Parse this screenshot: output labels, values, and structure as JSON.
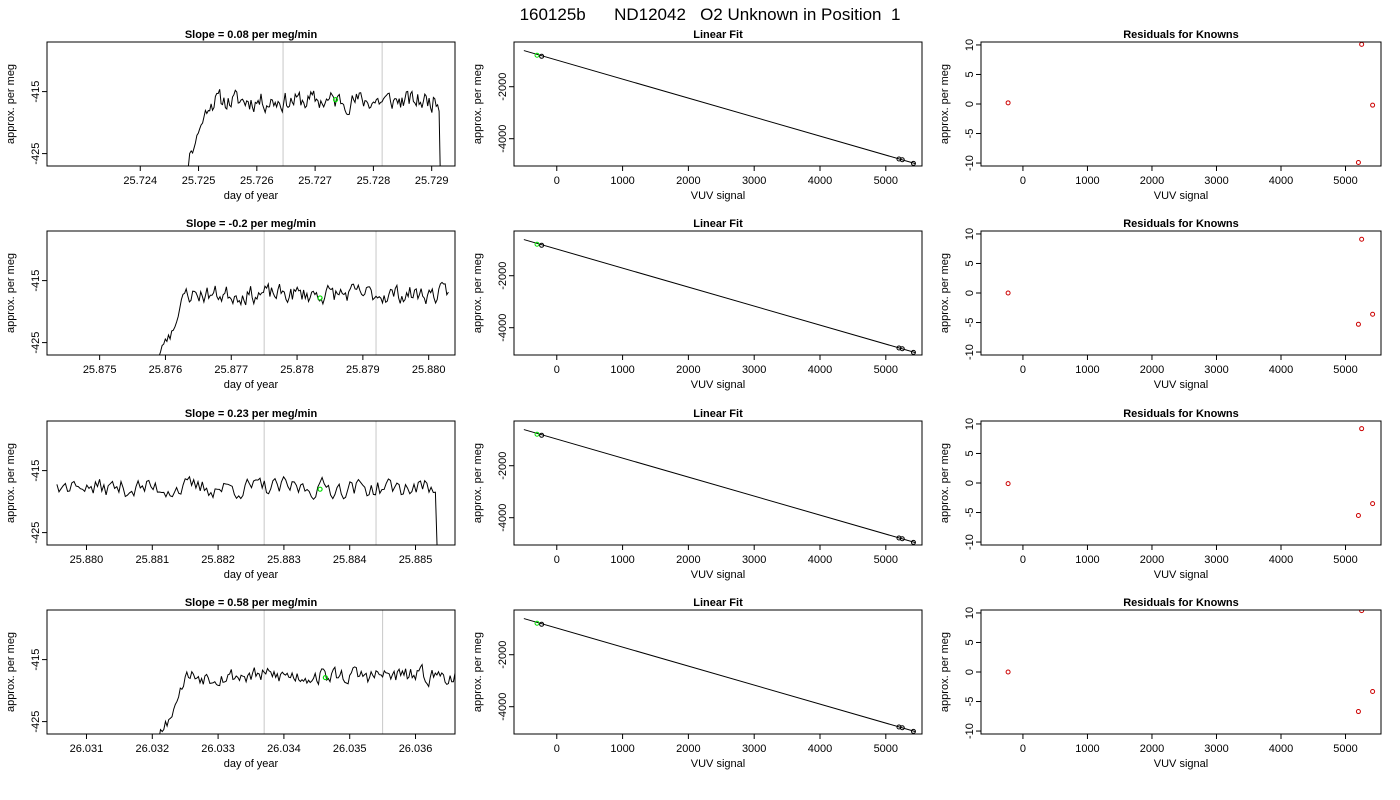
{
  "figure": {
    "title": "160125b      ND12042   O2 Unknown in Position  1"
  },
  "colors": {
    "trace": "#000000",
    "marker_green": "#00dd00",
    "marker_red": "#cc0000",
    "vline": "#c8c8c8"
  },
  "chart_data": [
    {
      "row": 1,
      "col": 1,
      "type": "line",
      "title": "Slope =  0.08  per meg/min",
      "xlabel": "day of year",
      "ylabel": "approx. per meg",
      "xlim": [
        25.7224,
        25.7294
      ],
      "ylim": [
        -427,
        -407
      ],
      "xticks": [
        25.724,
        25.725,
        25.726,
        25.727,
        25.728,
        25.729
      ],
      "xtick_labels": [
        "25.724",
        "25.725",
        "25.726",
        "25.727",
        "25.728",
        "25.729"
      ],
      "yticks": [
        -415,
        -425
      ],
      "ytick_labels": [
        "-415",
        "-425"
      ],
      "trace": {
        "t_start": 25.7248,
        "t_end": 25.7292,
        "start_level": -427,
        "start_ramp_to": -421,
        "mean": -416.5,
        "amp": 2.6,
        "end_drop": true,
        "seed": 11
      },
      "vlines": [
        25.72645,
        25.72815
      ],
      "marker": {
        "x": 25.72735,
        "y": -416.3
      }
    },
    {
      "row": 1,
      "col": 2,
      "type": "scatter",
      "title": "Linear Fit",
      "xlabel": "VUV signal",
      "ylabel": "approx. per meg",
      "xlim": [
        -650,
        5550
      ],
      "ylim": [
        -5050,
        -280
      ],
      "xticks": [
        0,
        1000,
        2000,
        3000,
        4000,
        5000
      ],
      "xtick_labels": [
        "0",
        "1000",
        "2000",
        "3000",
        "4000",
        "5000"
      ],
      "yticks": [
        -2000,
        -4000
      ],
      "ytick_labels": [
        "-2000",
        "-4000"
      ],
      "fit_line": {
        "x": [
          -500,
          5450
        ],
        "y": [
          -610,
          -4960
        ]
      },
      "points": [
        {
          "x": -300,
          "y": -790,
          "color": "green"
        },
        {
          "x": -230,
          "y": -830,
          "color": "black"
        },
        {
          "x": 5200,
          "y": -4780,
          "color": "black"
        },
        {
          "x": 5250,
          "y": -4810,
          "color": "black"
        },
        {
          "x": 5420,
          "y": -4950,
          "color": "black"
        }
      ]
    },
    {
      "row": 1,
      "col": 3,
      "type": "scatter",
      "title": "Residuals for Knowns",
      "xlabel": "VUV signal",
      "ylabel": "approx. per meg",
      "xlim": [
        -650,
        5550
      ],
      "ylim": [
        -10.5,
        10.5
      ],
      "xticks": [
        0,
        1000,
        2000,
        3000,
        4000,
        5000
      ],
      "xtick_labels": [
        "0",
        "1000",
        "2000",
        "3000",
        "4000",
        "5000"
      ],
      "yticks": [
        10,
        5,
        0,
        -5,
        -10
      ],
      "ytick_labels": [
        "10",
        "5",
        "0",
        "-5",
        "-10"
      ],
      "points": [
        {
          "x": -230,
          "y": 0.2,
          "color": "red"
        },
        {
          "x": 5250,
          "y": 10.1,
          "color": "red"
        },
        {
          "x": 5420,
          "y": -0.2,
          "color": "red"
        },
        {
          "x": 5200,
          "y": -9.9,
          "color": "red"
        }
      ]
    },
    {
      "row": 2,
      "col": 1,
      "type": "line",
      "title": "Slope =  -0.2  per meg/min",
      "xlabel": "day of year",
      "ylabel": "approx. per meg",
      "xlim": [
        25.8742,
        25.8804
      ],
      "ylim": [
        -427,
        -407
      ],
      "xticks": [
        25.875,
        25.876,
        25.877,
        25.878,
        25.879,
        25.88
      ],
      "xtick_labels": [
        "25.875",
        "25.876",
        "25.877",
        "25.878",
        "25.879",
        "25.880"
      ],
      "yticks": [
        -415,
        -425
      ],
      "ytick_labels": [
        "-415",
        "-425"
      ],
      "trace": {
        "t_start": 25.8759,
        "t_end": 25.8803,
        "start_level": -427,
        "start_ramp_to": -423,
        "mean": -417.2,
        "amp": 2.4,
        "end_drop": false,
        "seed": 23
      },
      "vlines": [
        25.8775,
        25.8792
      ],
      "marker": {
        "x": 25.87835,
        "y": -417.8
      }
    },
    {
      "row": 2,
      "col": 2,
      "type": "scatter",
      "title": "Linear Fit",
      "xlabel": "VUV signal",
      "ylabel": "approx. per meg",
      "xlim": [
        -650,
        5550
      ],
      "ylim": [
        -5050,
        -280
      ],
      "xticks": [
        0,
        1000,
        2000,
        3000,
        4000,
        5000
      ],
      "xtick_labels": [
        "0",
        "1000",
        "2000",
        "3000",
        "4000",
        "5000"
      ],
      "yticks": [
        -2000,
        -4000
      ],
      "ytick_labels": [
        "-2000",
        "-4000"
      ],
      "fit_line": {
        "x": [
          -500,
          5450
        ],
        "y": [
          -610,
          -4960
        ]
      },
      "points": [
        {
          "x": -300,
          "y": -790,
          "color": "green"
        },
        {
          "x": -230,
          "y": -830,
          "color": "black"
        },
        {
          "x": 5200,
          "y": -4780,
          "color": "black"
        },
        {
          "x": 5250,
          "y": -4810,
          "color": "black"
        },
        {
          "x": 5420,
          "y": -4950,
          "color": "black"
        }
      ]
    },
    {
      "row": 2,
      "col": 3,
      "type": "scatter",
      "title": "Residuals for Knowns",
      "xlabel": "VUV signal",
      "ylabel": "approx. per meg",
      "xlim": [
        -650,
        5550
      ],
      "ylim": [
        -10.5,
        10.5
      ],
      "xticks": [
        0,
        1000,
        2000,
        3000,
        4000,
        5000
      ],
      "xtick_labels": [
        "0",
        "1000",
        "2000",
        "3000",
        "4000",
        "5000"
      ],
      "yticks": [
        10,
        5,
        0,
        -5,
        -10
      ],
      "ytick_labels": [
        "10",
        "5",
        "0",
        "-5",
        "-10"
      ],
      "points": [
        {
          "x": -230,
          "y": 0.0,
          "color": "red"
        },
        {
          "x": 5250,
          "y": 9.1,
          "color": "red"
        },
        {
          "x": 5420,
          "y": -3.6,
          "color": "red"
        },
        {
          "x": 5200,
          "y": -5.3,
          "color": "red"
        }
      ]
    },
    {
      "row": 3,
      "col": 1,
      "type": "line",
      "title": "Slope =  0.23  per meg/min",
      "xlabel": "day of year",
      "ylabel": "approx. per meg",
      "xlim": [
        25.8794,
        25.8856
      ],
      "ylim": [
        -427,
        -407
      ],
      "xticks": [
        25.88,
        25.881,
        25.882,
        25.883,
        25.884,
        25.885
      ],
      "xtick_labels": [
        "25.880",
        "25.881",
        "25.882",
        "25.883",
        "25.884",
        "25.885"
      ],
      "yticks": [
        -415,
        -425
      ],
      "ytick_labels": [
        "-415",
        "-425"
      ],
      "trace": {
        "t_start": 25.87955,
        "t_end": 25.8854,
        "start_level": -417.5,
        "start_ramp_to": -417.5,
        "mean": -417.8,
        "amp": 2.5,
        "end_drop": true,
        "seed": 37
      },
      "vlines": [
        25.8827,
        25.8844
      ],
      "marker": {
        "x": 25.88355,
        "y": -418.0
      }
    },
    {
      "row": 3,
      "col": 2,
      "type": "scatter",
      "title": "Linear Fit",
      "xlabel": "VUV signal",
      "ylabel": "approx. per meg",
      "xlim": [
        -650,
        5550
      ],
      "ylim": [
        -5050,
        -280
      ],
      "xticks": [
        0,
        1000,
        2000,
        3000,
        4000,
        5000
      ],
      "xtick_labels": [
        "0",
        "1000",
        "2000",
        "3000",
        "4000",
        "5000"
      ],
      "yticks": [
        -2000,
        -4000
      ],
      "ytick_labels": [
        "-2000",
        "-4000"
      ],
      "fit_line": {
        "x": [
          -500,
          5450
        ],
        "y": [
          -610,
          -4960
        ]
      },
      "points": [
        {
          "x": -300,
          "y": -790,
          "color": "green"
        },
        {
          "x": -230,
          "y": -830,
          "color": "black"
        },
        {
          "x": 5200,
          "y": -4780,
          "color": "black"
        },
        {
          "x": 5250,
          "y": -4810,
          "color": "black"
        },
        {
          "x": 5420,
          "y": -4950,
          "color": "black"
        }
      ]
    },
    {
      "row": 3,
      "col": 3,
      "type": "scatter",
      "title": "Residuals for Knowns",
      "xlabel": "VUV signal",
      "ylabel": "approx. per meg",
      "xlim": [
        -650,
        5550
      ],
      "ylim": [
        -10.5,
        10.5
      ],
      "xticks": [
        0,
        1000,
        2000,
        3000,
        4000,
        5000
      ],
      "xtick_labels": [
        "0",
        "1000",
        "2000",
        "3000",
        "4000",
        "5000"
      ],
      "yticks": [
        10,
        5,
        0,
        -5,
        -10
      ],
      "ytick_labels": [
        "10",
        "5",
        "0",
        "-5",
        "-10"
      ],
      "points": [
        {
          "x": -230,
          "y": -0.1,
          "color": "red"
        },
        {
          "x": 5250,
          "y": 9.2,
          "color": "red"
        },
        {
          "x": 5420,
          "y": -3.5,
          "color": "red"
        },
        {
          "x": 5200,
          "y": -5.5,
          "color": "red"
        }
      ]
    },
    {
      "row": 4,
      "col": 1,
      "type": "line",
      "title": "Slope =  0.58  per meg/min",
      "xlabel": "day of year",
      "ylabel": "approx. per meg",
      "xlim": [
        26.0304,
        26.0366
      ],
      "ylim": [
        -427,
        -407
      ],
      "xticks": [
        26.031,
        26.032,
        26.033,
        26.034,
        26.035,
        26.036
      ],
      "xtick_labels": [
        "26.031",
        "26.032",
        "26.033",
        "26.034",
        "26.035",
        "26.036"
      ],
      "yticks": [
        -415,
        -425
      ],
      "ytick_labels": [
        "-415",
        "-425"
      ],
      "trace": {
        "t_start": 26.0321,
        "t_end": 26.0366,
        "start_level": -427,
        "start_ramp_to": -423,
        "mean": -417.6,
        "amp": 2.2,
        "end_drop": false,
        "seed": 53
      },
      "vlines": [
        26.0337,
        26.0355
      ],
      "marker": {
        "x": 26.03463,
        "y": -417.9
      }
    },
    {
      "row": 4,
      "col": 2,
      "type": "scatter",
      "title": "Linear Fit",
      "xlabel": "VUV signal",
      "ylabel": "approx. per meg",
      "xlim": [
        -650,
        5550
      ],
      "ylim": [
        -5050,
        -280
      ],
      "xticks": [
        0,
        1000,
        2000,
        3000,
        4000,
        5000
      ],
      "xtick_labels": [
        "0",
        "1000",
        "2000",
        "3000",
        "4000",
        "5000"
      ],
      "yticks": [
        -2000,
        -4000
      ],
      "ytick_labels": [
        "-2000",
        "-4000"
      ],
      "fit_line": {
        "x": [
          -500,
          5450
        ],
        "y": [
          -610,
          -4960
        ]
      },
      "points": [
        {
          "x": -300,
          "y": -790,
          "color": "green"
        },
        {
          "x": -230,
          "y": -830,
          "color": "black"
        },
        {
          "x": 5200,
          "y": -4780,
          "color": "black"
        },
        {
          "x": 5250,
          "y": -4810,
          "color": "black"
        },
        {
          "x": 5420,
          "y": -4950,
          "color": "black"
        }
      ]
    },
    {
      "row": 4,
      "col": 3,
      "type": "scatter",
      "title": "Residuals for Knowns",
      "xlabel": "VUV signal",
      "ylabel": "approx. per meg",
      "xlim": [
        -650,
        5550
      ],
      "ylim": [
        -10.5,
        10.5
      ],
      "xticks": [
        0,
        1000,
        2000,
        3000,
        4000,
        5000
      ],
      "xtick_labels": [
        "0",
        "1000",
        "2000",
        "3000",
        "4000",
        "5000"
      ],
      "yticks": [
        10,
        5,
        0,
        -5,
        -10
      ],
      "ytick_labels": [
        "10",
        "5",
        "0",
        "-5",
        "-10"
      ],
      "points": [
        {
          "x": -230,
          "y": 0.0,
          "color": "red"
        },
        {
          "x": 5250,
          "y": 10.4,
          "color": "red"
        },
        {
          "x": 5420,
          "y": -3.3,
          "color": "red"
        },
        {
          "x": 5200,
          "y": -6.7,
          "color": "red"
        }
      ]
    }
  ]
}
